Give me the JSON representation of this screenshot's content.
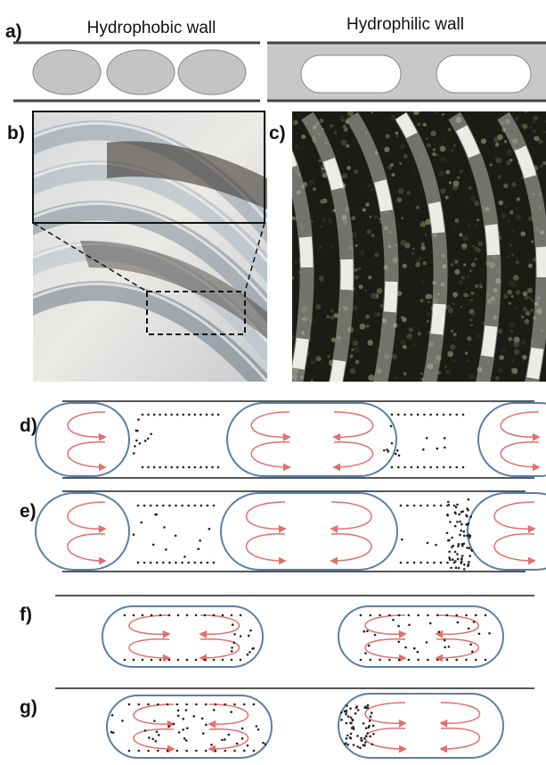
{
  "labels": {
    "a": "a)",
    "b": "b)",
    "c": "c)",
    "d": "d)",
    "e": "e)",
    "f": "f)",
    "g": "g)"
  },
  "titles": {
    "hydrophobic": "Hydrophobic wall",
    "hydrophilic": "Hydrophilic wall"
  }
}
